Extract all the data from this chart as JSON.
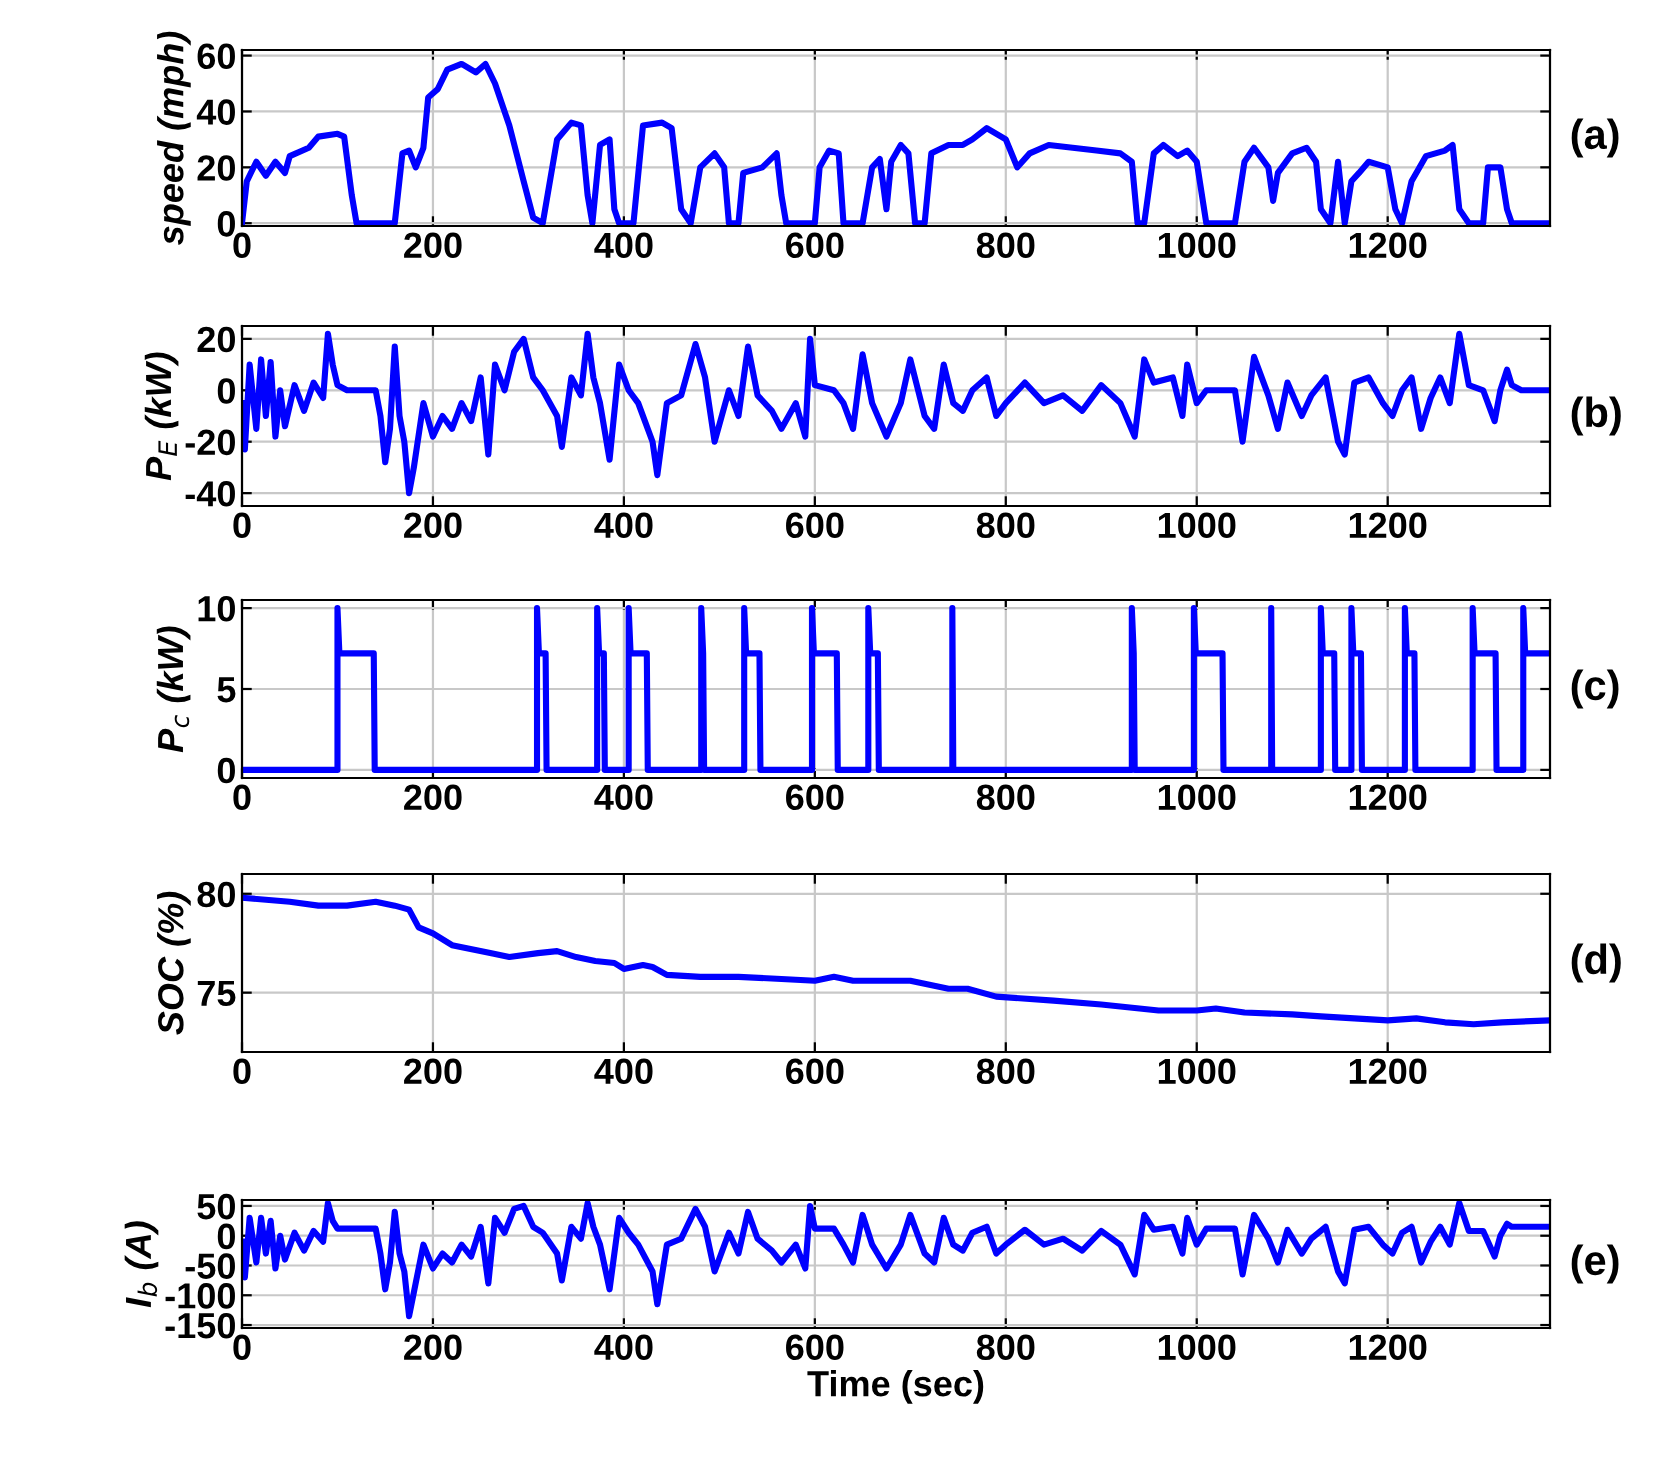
{
  "chart_data": [
    {
      "type": "line",
      "ylabel": "speed (mph)",
      "annotations": [
        "(a)"
      ],
      "xlim": [
        0,
        1370
      ],
      "xticks": [
        0,
        200,
        400,
        600,
        800,
        1000,
        1200
      ],
      "ylim": [
        -1,
        62
      ],
      "yticks": [
        0,
        20,
        40,
        60
      ],
      "grid": true,
      "line_style": "solid",
      "series": [
        {
          "color": "#0000ff",
          "x": [
            0,
            5,
            15,
            25,
            35,
            45,
            50,
            70,
            80,
            100,
            107,
            115,
            120,
            160,
            168,
            175,
            182,
            190,
            195,
            205,
            215,
            230,
            245,
            255,
            265,
            280,
            295,
            305,
            315,
            330,
            345,
            355,
            362,
            367,
            375,
            385,
            390,
            395,
            410,
            420,
            440,
            450,
            460,
            470,
            480,
            495,
            505,
            510,
            520,
            525,
            545,
            560,
            565,
            570,
            600,
            605,
            615,
            625,
            630,
            650,
            660,
            668,
            675,
            680,
            690,
            698,
            705,
            715,
            722,
            740,
            755,
            765,
            780,
            800,
            812,
            825,
            845,
            870,
            895,
            920,
            932,
            938,
            945,
            955,
            965,
            980,
            990,
            1000,
            1010,
            1040,
            1050,
            1060,
            1075,
            1080,
            1085,
            1100,
            1115,
            1125,
            1130,
            1140,
            1148,
            1155,
            1162,
            1170,
            1180,
            1200,
            1208,
            1215,
            1225,
            1240,
            1260,
            1268,
            1275,
            1285,
            1300,
            1305,
            1318,
            1325,
            1330,
            1370
          ],
          "values": [
            0,
            15,
            22,
            17,
            22,
            18,
            24,
            27,
            31,
            32,
            31,
            10,
            0,
            0,
            25,
            26,
            20,
            27,
            45,
            48,
            55,
            57,
            54,
            57,
            50,
            35,
            15,
            2,
            0,
            30,
            36,
            35,
            10,
            0,
            28,
            30,
            5,
            0,
            0,
            35,
            36,
            34,
            5,
            0,
            20,
            25,
            20,
            0,
            0,
            18,
            20,
            25,
            10,
            0,
            0,
            20,
            26,
            25,
            0,
            0,
            20,
            23,
            5,
            22,
            28,
            25,
            0,
            0,
            25,
            28,
            28,
            30,
            34,
            30,
            20,
            25,
            28,
            27,
            26,
            25,
            22,
            0,
            0,
            25,
            28,
            24,
            26,
            22,
            0,
            0,
            22,
            27,
            20,
            8,
            18,
            25,
            27,
            22,
            5,
            0,
            22,
            0,
            15,
            18,
            22,
            20,
            5,
            0,
            15,
            24,
            26,
            28,
            5,
            0,
            0,
            20,
            20,
            5,
            0,
            0
          ]
        }
      ]
    },
    {
      "type": "line",
      "ylabel": "P$_{E}$ (kW)",
      "annotations": [
        "(b)"
      ],
      "xlim": [
        0,
        1370
      ],
      "xticks": [
        0,
        200,
        400,
        600,
        800,
        1000,
        1200
      ],
      "ylim": [
        -45,
        25
      ],
      "yticks": [
        -40,
        -20,
        0,
        20
      ],
      "grid": true,
      "line_style": "solid",
      "series": [
        {
          "color": "#0000ff",
          "x": [
            0,
            3,
            8,
            15,
            20,
            25,
            30,
            35,
            40,
            45,
            55,
            65,
            75,
            85,
            90,
            95,
            100,
            110,
            140,
            145,
            150,
            155,
            160,
            165,
            170,
            175,
            180,
            190,
            200,
            210,
            220,
            230,
            240,
            250,
            258,
            265,
            275,
            285,
            295,
            305,
            315,
            330,
            335,
            345,
            355,
            362,
            368,
            375,
            385,
            395,
            405,
            415,
            430,
            435,
            445,
            460,
            475,
            485,
            495,
            510,
            520,
            530,
            540,
            555,
            565,
            580,
            590,
            595,
            600,
            620,
            630,
            640,
            650,
            660,
            675,
            690,
            700,
            715,
            725,
            735,
            745,
            755,
            765,
            780,
            790,
            800,
            820,
            840,
            860,
            880,
            900,
            920,
            935,
            945,
            955,
            975,
            985,
            990,
            1000,
            1010,
            1040,
            1048,
            1060,
            1075,
            1085,
            1095,
            1110,
            1120,
            1135,
            1148,
            1155,
            1165,
            1180,
            1195,
            1205,
            1215,
            1225,
            1235,
            1245,
            1255,
            1265,
            1275,
            1285,
            1300,
            1312,
            1318,
            1325,
            1330,
            1340,
            1370
          ],
          "values": [
            -5,
            -23,
            10,
            -15,
            12,
            -10,
            11,
            -18,
            0,
            -14,
            2,
            -8,
            3,
            -3,
            22,
            10,
            2,
            0,
            0,
            -10,
            -28,
            -15,
            17,
            -10,
            -20,
            -40,
            -30,
            -5,
            -18,
            -10,
            -15,
            -5,
            -12,
            5,
            -25,
            10,
            0,
            15,
            20,
            5,
            0,
            -10,
            -22,
            5,
            -2,
            22,
            5,
            -5,
            -27,
            10,
            0,
            -5,
            -20,
            -33,
            -5,
            -2,
            18,
            5,
            -20,
            0,
            -10,
            17,
            -2,
            -8,
            -15,
            -5,
            -18,
            20,
            2,
            0,
            -5,
            -15,
            14,
            -5,
            -18,
            -5,
            12,
            -10,
            -15,
            10,
            -5,
            -8,
            0,
            5,
            -10,
            -5,
            3,
            -5,
            -2,
            -8,
            2,
            -5,
            -18,
            12,
            3,
            5,
            -10,
            10,
            -5,
            0,
            0,
            -20,
            13,
            -2,
            -15,
            3,
            -10,
            -2,
            5,
            -20,
            -25,
            3,
            5,
            -5,
            -10,
            0,
            5,
            -15,
            -3,
            5,
            -5,
            22,
            2,
            0,
            -12,
            0,
            8,
            2,
            0,
            0
          ]
        }
      ]
    },
    {
      "type": "line",
      "ylabel": "P$_{c}$ (kW)",
      "annotations": [
        "(c)"
      ],
      "xlim": [
        0,
        1370
      ],
      "xticks": [
        0,
        200,
        400,
        600,
        800,
        1000,
        1200
      ],
      "ylim": [
        -0.5,
        10.5
      ],
      "yticks": [
        0,
        5,
        10
      ],
      "grid": true,
      "line_style": "solid",
      "series": [
        {
          "color": "#0000ff",
          "x": [
            0,
            100,
            100,
            102,
            138,
            139,
            309,
            309,
            311,
            318,
            319,
            372,
            372,
            374,
            379,
            380,
            405,
            405,
            407,
            424,
            425,
            481,
            481,
            483,
            484,
            526,
            526,
            528,
            542,
            543,
            597,
            597,
            599,
            623,
            624,
            656,
            656,
            658,
            666,
            667,
            744,
            744,
            745,
            932,
            932,
            934,
            935,
            997,
            997,
            999,
            1027,
            1028,
            1078,
            1078,
            1079,
            1130,
            1130,
            1132,
            1144,
            1145,
            1162,
            1162,
            1164,
            1172,
            1173,
            1218,
            1218,
            1220,
            1228,
            1229,
            1289,
            1289,
            1291,
            1313,
            1314,
            1342,
            1342,
            1344,
            1370
          ],
          "values": [
            0,
            0,
            10,
            7.2,
            7.2,
            0,
            0,
            10,
            7.2,
            7.2,
            0,
            0,
            10,
            7.2,
            7.2,
            0,
            0,
            10,
            7.2,
            7.2,
            0,
            0,
            10,
            7.2,
            0,
            0,
            10,
            7.2,
            7.2,
            0,
            0,
            10,
            7.2,
            7.2,
            0,
            0,
            10,
            7.2,
            7.2,
            0,
            0,
            10,
            0,
            0,
            10,
            7.2,
            0,
            0,
            10,
            7.2,
            7.2,
            0,
            0,
            10,
            0,
            0,
            10,
            7.2,
            7.2,
            0,
            0,
            10,
            7.2,
            7.2,
            0,
            0,
            10,
            7.2,
            7.2,
            0,
            0,
            10,
            7.2,
            7.2,
            0,
            0,
            10,
            7.2,
            7.2
          ]
        }
      ]
    },
    {
      "type": "line",
      "ylabel": "SOC (%)",
      "annotations": [
        "(d)"
      ],
      "xlim": [
        0,
        1370
      ],
      "xticks": [
        0,
        200,
        400,
        600,
        800,
        1000,
        1200
      ],
      "ylim": [
        72,
        81
      ],
      "yticks": [
        75,
        80
      ],
      "grid": true,
      "line_style": "solid",
      "series": [
        {
          "color": "#0000ff",
          "x": [
            0,
            50,
            80,
            110,
            140,
            160,
            175,
            185,
            200,
            220,
            260,
            280,
            310,
            330,
            350,
            370,
            390,
            400,
            420,
            430,
            445,
            480,
            520,
            560,
            600,
            620,
            640,
            700,
            740,
            760,
            790,
            850,
            900,
            960,
            1000,
            1020,
            1050,
            1100,
            1130,
            1200,
            1230,
            1260,
            1290,
            1320,
            1370
          ],
          "values": [
            79.8,
            79.6,
            79.4,
            79.4,
            79.6,
            79.4,
            79.2,
            78.3,
            78.0,
            77.4,
            77.0,
            76.8,
            77.0,
            77.1,
            76.8,
            76.6,
            76.5,
            76.2,
            76.4,
            76.3,
            75.9,
            75.8,
            75.8,
            75.7,
            75.6,
            75.8,
            75.6,
            75.6,
            75.2,
            75.2,
            74.8,
            74.6,
            74.4,
            74.1,
            74.1,
            74.2,
            74.0,
            73.9,
            73.8,
            73.6,
            73.7,
            73.5,
            73.4,
            73.5,
            73.6
          ]
        }
      ]
    },
    {
      "type": "line",
      "xlabel": "Time (sec)",
      "ylabel": "I$_{b}$ (A)",
      "annotations": [
        "(e)"
      ],
      "xlim": [
        0,
        1370
      ],
      "xticks": [
        0,
        200,
        400,
        600,
        800,
        1000,
        1200
      ],
      "ylim": [
        -155,
        60
      ],
      "yticks": [
        -150,
        -100,
        -50,
        0,
        50
      ],
      "grid": true,
      "line_style": "solid",
      "series": [
        {
          "color": "#0000ff",
          "x": [
            0,
            3,
            8,
            15,
            20,
            25,
            30,
            35,
            40,
            45,
            55,
            65,
            75,
            85,
            90,
            95,
            100,
            110,
            140,
            145,
            150,
            155,
            160,
            165,
            170,
            175,
            180,
            190,
            200,
            210,
            220,
            230,
            240,
            250,
            258,
            265,
            275,
            285,
            295,
            305,
            315,
            330,
            335,
            345,
            355,
            362,
            368,
            375,
            385,
            395,
            405,
            415,
            430,
            435,
            445,
            460,
            475,
            485,
            495,
            510,
            520,
            530,
            540,
            555,
            565,
            580,
            590,
            595,
            600,
            620,
            630,
            640,
            650,
            660,
            675,
            690,
            700,
            715,
            725,
            735,
            745,
            755,
            765,
            780,
            790,
            800,
            820,
            840,
            860,
            880,
            900,
            920,
            935,
            945,
            955,
            975,
            985,
            990,
            1000,
            1010,
            1040,
            1048,
            1060,
            1075,
            1085,
            1095,
            1110,
            1120,
            1135,
            1148,
            1155,
            1165,
            1180,
            1195,
            1205,
            1215,
            1225,
            1235,
            1245,
            1255,
            1265,
            1275,
            1285,
            1300,
            1312,
            1318,
            1325,
            1330,
            1340,
            1370
          ],
          "values": [
            -10,
            -70,
            30,
            -45,
            30,
            -30,
            25,
            -55,
            0,
            -40,
            5,
            -25,
            8,
            -10,
            55,
            25,
            12,
            12,
            12,
            -30,
            -90,
            -45,
            40,
            -30,
            -60,
            -135,
            -95,
            -15,
            -55,
            -30,
            -45,
            -15,
            -35,
            15,
            -80,
            30,
            5,
            45,
            50,
            15,
            5,
            -30,
            -75,
            15,
            -5,
            55,
            15,
            -15,
            -90,
            30,
            5,
            -15,
            -60,
            -115,
            -15,
            -5,
            45,
            15,
            -60,
            5,
            -30,
            40,
            -5,
            -25,
            -45,
            -15,
            -55,
            50,
            12,
            12,
            -15,
            -45,
            35,
            -15,
            -55,
            -15,
            35,
            -30,
            -45,
            30,
            -15,
            -25,
            5,
            15,
            -30,
            -15,
            10,
            -15,
            -5,
            -25,
            8,
            -15,
            -65,
            35,
            10,
            15,
            -30,
            30,
            -15,
            12,
            12,
            -65,
            35,
            -5,
            -45,
            10,
            -30,
            -5,
            15,
            -60,
            -80,
            10,
            15,
            -15,
            -30,
            5,
            15,
            -45,
            -10,
            15,
            -15,
            55,
            8,
            8,
            -35,
            0,
            20,
            15,
            15,
            15
          ]
        }
      ]
    }
  ]
}
